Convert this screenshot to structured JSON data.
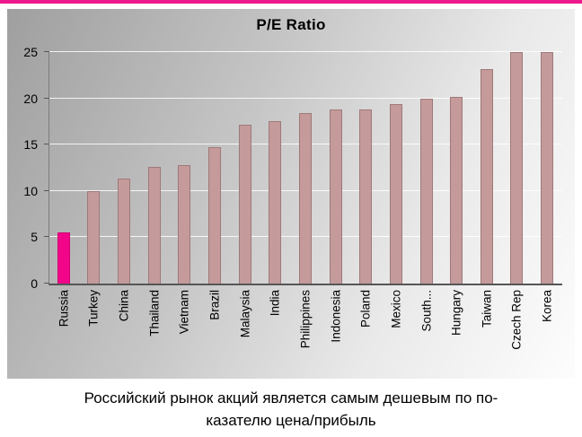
{
  "accent_color": "#ec1a8d",
  "chart_data": {
    "type": "bar",
    "title": "P/E Ratio",
    "categories": [
      "Russia",
      "Turkey",
      "China",
      "Thailand",
      "Vietnam",
      "Brazil",
      "Malaysia",
      "India",
      "Philippines",
      "Indonesia",
      "Poland",
      "Mexico",
      "South...",
      "Hungary",
      "Taiwan",
      "Czech Rep",
      "Korea"
    ],
    "values": [
      5.5,
      10,
      11.3,
      12.6,
      12.8,
      14.7,
      17.2,
      17.5,
      18.4,
      18.8,
      18.8,
      19.4,
      20,
      20.2,
      23.2,
      25,
      25
    ],
    "xlabel": "",
    "ylabel": "",
    "ylim": [
      0,
      25
    ],
    "yticks": [
      0,
      5,
      10,
      15,
      20,
      25
    ],
    "grid": true,
    "legend_position": "none",
    "bar_color": "#c49a9a",
    "highlight_category": "Russia",
    "highlight_color": "#f3058a",
    "background": "gray-diagonal-gradient"
  },
  "caption": {
    "lines": [
      "Российский рынок акций является самым дешевым по по-",
      "казателю цена/прибыль"
    ]
  }
}
